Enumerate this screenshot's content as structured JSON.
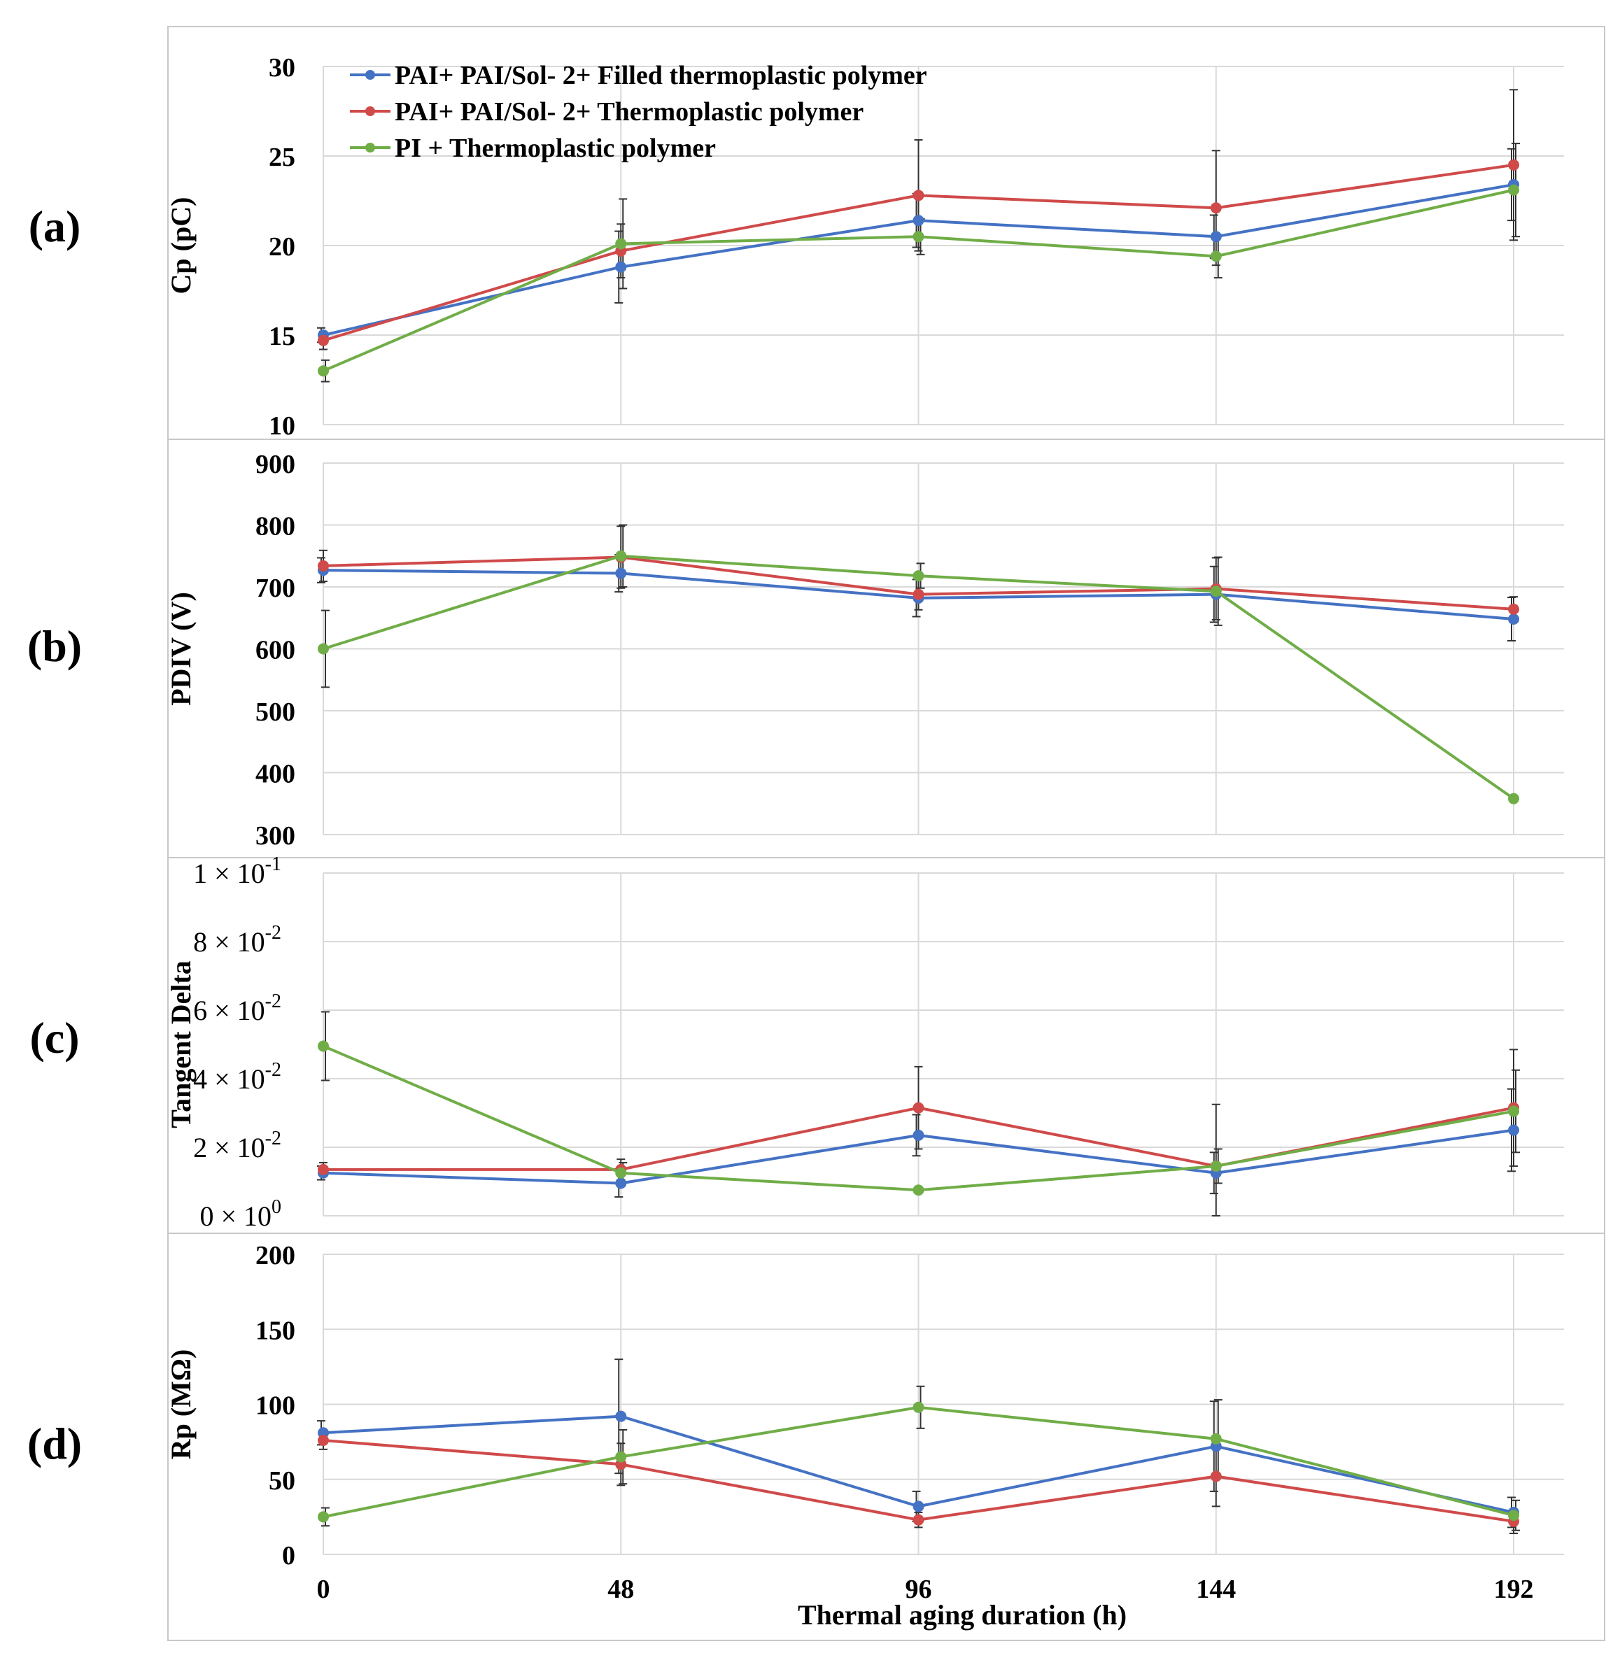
{
  "figure": {
    "xlabel": "Thermal aging duration (h)",
    "panel_labels": [
      "(a)",
      "(b)",
      "(c)",
      "(d)"
    ]
  },
  "legend": {
    "position": "top-left",
    "entries": [
      {
        "name": "PAI+ PAI/Sol- 2+ Filled thermoplastic polymer",
        "color": "#4472C4"
      },
      {
        "name": "PAI+ PAI/Sol- 2+ Thermoplastic polymer",
        "color": "#D04A4A"
      },
      {
        "name": "PI + Thermoplastic polymer",
        "color": "#70AD47"
      }
    ]
  },
  "chart_data": [
    {
      "type": "line",
      "panel": "(a)",
      "ylabel": "Cp (pC)",
      "x": [
        0,
        48,
        96,
        144,
        192
      ],
      "xticks": [
        "0",
        "48",
        "96",
        "144",
        "192"
      ],
      "ylim": [
        10,
        30
      ],
      "yticks": [
        10,
        15,
        20,
        25,
        30
      ],
      "ytick_labels": [
        "10",
        "15",
        "20",
        "25",
        "30"
      ],
      "series": [
        {
          "name": "PAI+ PAI/Sol- 2+ Filled thermoplastic polymer",
          "color": "#4472C4",
          "values": [
            15,
            18.8,
            21.4,
            20.5,
            23.4
          ],
          "errors": [
            0.4,
            2,
            1.5,
            1.2,
            2
          ]
        },
        {
          "name": "PAI+ PAI/Sol- 2+ Thermoplastic polymer",
          "color": "#D04A4A",
          "values": [
            14.7,
            19.7,
            22.8,
            22.1,
            24.5
          ],
          "errors": [
            0.5,
            1.5,
            3.1,
            3.2,
            4.2
          ]
        },
        {
          "name": "PI + Thermoplastic polymer",
          "color": "#70AD47",
          "values": [
            13,
            20.1,
            20.5,
            19.4,
            23.1
          ],
          "errors": [
            0.6,
            2.5,
            1,
            1.2,
            2.6
          ]
        }
      ]
    },
    {
      "type": "line",
      "panel": "(b)",
      "ylabel": "PDIV (V)",
      "x": [
        0,
        48,
        96,
        144,
        192
      ],
      "xticks": [
        "0",
        "48",
        "96",
        "144",
        "192"
      ],
      "ylim": [
        300,
        900
      ],
      "yticks": [
        300,
        400,
        500,
        600,
        700,
        800,
        900
      ],
      "ytick_labels": [
        "300",
        "400",
        "500",
        "600",
        "700",
        "800",
        "900"
      ],
      "series": [
        {
          "name": "PAI+ PAI/Sol- 2+ Filled thermoplastic polymer",
          "color": "#4472C4",
          "values": [
            727,
            722,
            682,
            688,
            648
          ],
          "errors": [
            20,
            30,
            30,
            45,
            35
          ]
        },
        {
          "name": "PAI+ PAI/Sol- 2+ Thermoplastic polymer",
          "color": "#D04A4A",
          "values": [
            734,
            748,
            688,
            697,
            664
          ],
          "errors": [
            25,
            50,
            25,
            50,
            20
          ]
        },
        {
          "name": "PI + Thermoplastic polymer",
          "color": "#70AD47",
          "values": [
            600,
            750,
            718,
            693,
            358
          ],
          "errors": [
            62,
            50,
            20,
            55,
            0
          ]
        }
      ]
    },
    {
      "type": "line",
      "panel": "(c)",
      "ylabel": "Tangent Delta",
      "x": [
        0,
        48,
        96,
        144,
        192
      ],
      "xticks": [
        "0",
        "48",
        "96",
        "144",
        "192"
      ],
      "ylim": [
        0,
        0.1
      ],
      "yticks": [
        0,
        0.02,
        0.04,
        0.06,
        0.08,
        0.1
      ],
      "ytick_labels": [
        {
          "mantissa": "0",
          "exponent": "0"
        },
        {
          "mantissa": "2",
          "exponent": "-2"
        },
        {
          "mantissa": "4",
          "exponent": "-2"
        },
        {
          "mantissa": "6",
          "exponent": "-2"
        },
        {
          "mantissa": "8",
          "exponent": "-2"
        },
        {
          "mantissa": "1",
          "exponent": "-1"
        }
      ],
      "times_sign": "×",
      "base": "10",
      "series": [
        {
          "name": "PAI+ PAI/Sol- 2+ Filled thermoplastic polymer",
          "color": "#4472C4",
          "values": [
            0.0125,
            0.0095,
            0.0235,
            0.0125,
            0.025
          ],
          "errors": [
            0.002,
            0.004,
            0.006,
            0.006,
            0.012
          ]
        },
        {
          "name": "PAI+ PAI/Sol- 2+ Thermoplastic polymer",
          "color": "#D04A4A",
          "values": [
            0.0135,
            0.0135,
            0.0315,
            0.0145,
            0.0315
          ],
          "errors": [
            0.002,
            0.003,
            0.012,
            0.018,
            0.017
          ]
        },
        {
          "name": "PI + Thermoplastic polymer",
          "color": "#70AD47",
          "values": [
            0.0495,
            0.0125,
            0.0075,
            0.0145,
            0.0305
          ],
          "errors": [
            0.01,
            0.003,
            0,
            0.005,
            0.012
          ]
        }
      ]
    },
    {
      "type": "line",
      "panel": "(d)",
      "ylabel": "Rp (MΩ)",
      "x": [
        0,
        48,
        96,
        144,
        192
      ],
      "xticks": [
        "0",
        "48",
        "96",
        "144",
        "192"
      ],
      "ylim": [
        0,
        200
      ],
      "yticks": [
        0,
        50,
        100,
        150,
        200
      ],
      "ytick_labels": [
        "0",
        "50",
        "100",
        "150",
        "200"
      ],
      "series": [
        {
          "name": "PAI+ PAI/Sol- 2+ Filled thermoplastic polymer",
          "color": "#4472C4",
          "values": [
            81,
            92,
            32,
            72,
            28
          ],
          "errors": [
            8,
            38,
            10,
            30,
            10
          ]
        },
        {
          "name": "PAI+ PAI/Sol- 2+ Thermoplastic polymer",
          "color": "#D04A4A",
          "values": [
            76,
            60,
            23,
            52,
            22
          ],
          "errors": [
            6,
            14,
            5,
            20,
            8
          ]
        },
        {
          "name": "PI + Thermoplastic polymer",
          "color": "#70AD47",
          "values": [
            25,
            65,
            98,
            77,
            26
          ],
          "errors": [
            6,
            18,
            14,
            26,
            10
          ]
        }
      ]
    }
  ]
}
